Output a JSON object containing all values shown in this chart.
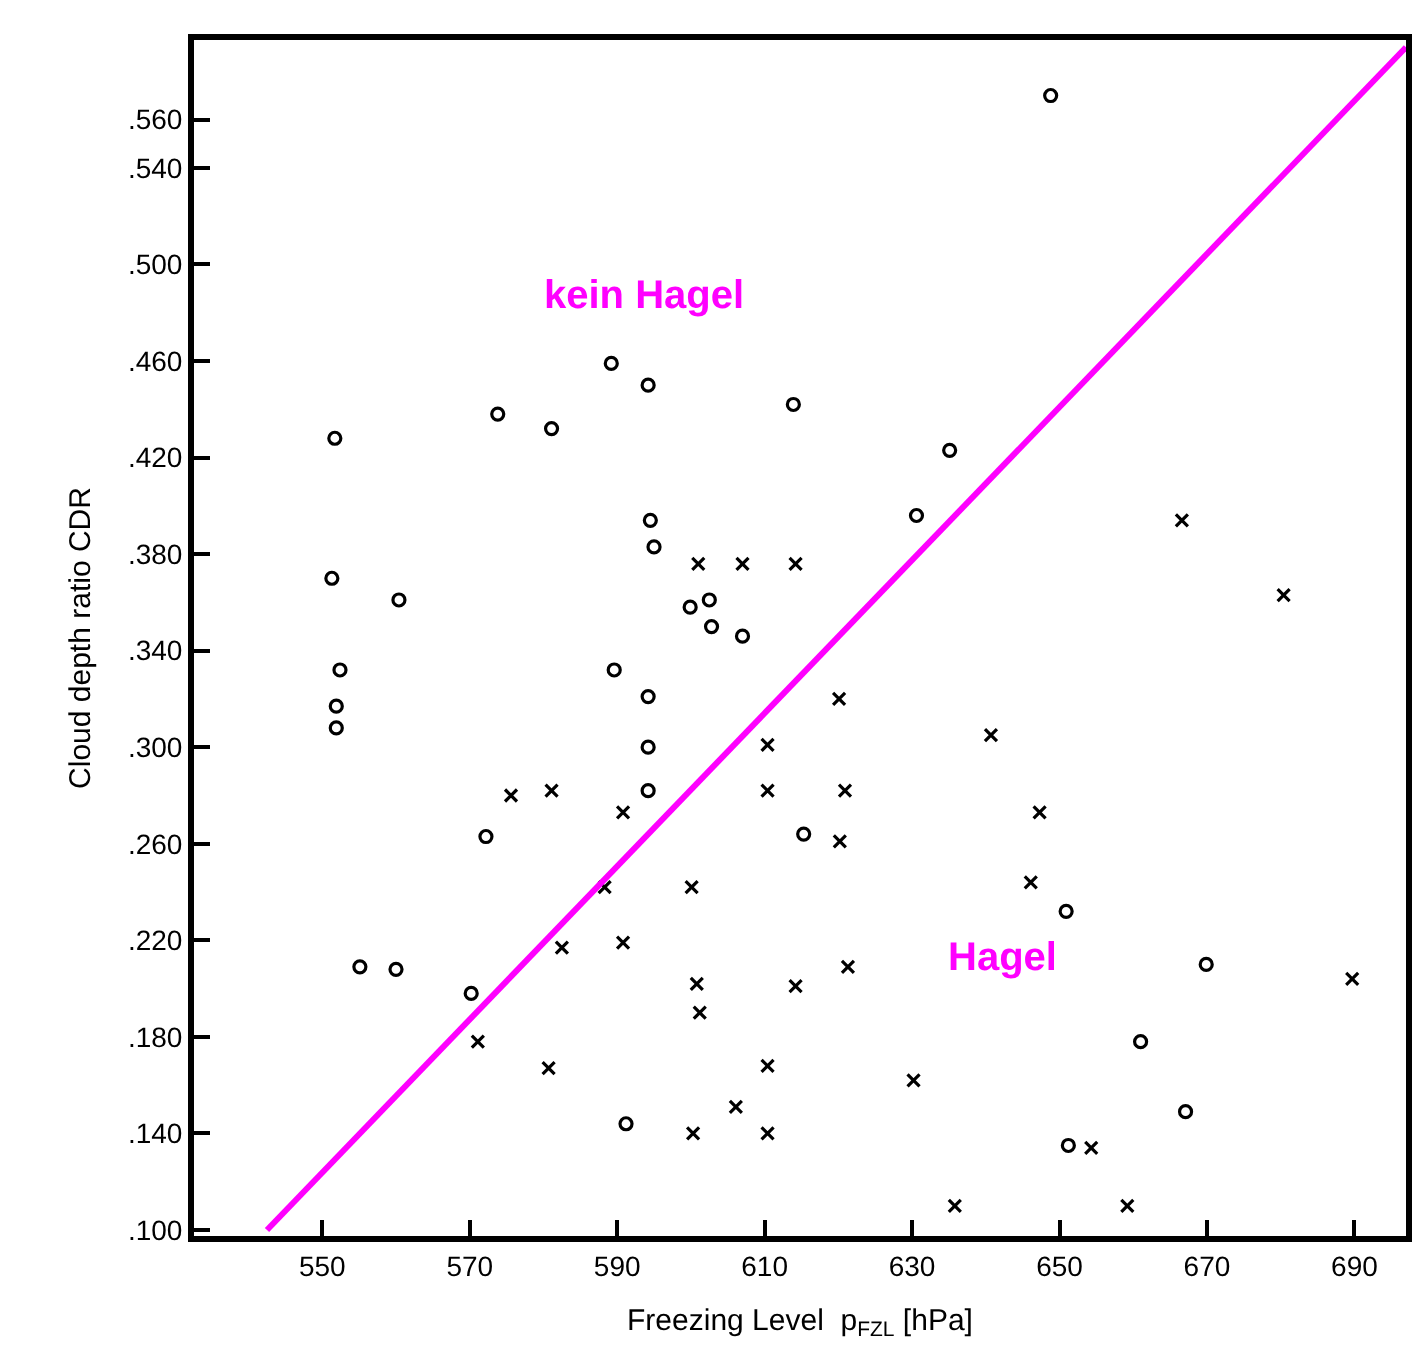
{
  "chart_data": {
    "type": "scatter",
    "xlabel": "Freezing Level  p$_{FZL}$ [hPa]",
    "ylabel": "Cloud depth ratio CDR",
    "annotations": [
      "kein Hagel",
      "Hagel"
    ],
    "xlim": [
      532.6,
      697
    ],
    "xticks": [
      550,
      570,
      590,
      610,
      630,
      650,
      670,
      690
    ],
    "ylim": [
      0.0975,
      0.593
    ],
    "yticks": [
      {
        "value": 0.1,
        "label": ".100"
      },
      {
        "value": 0.14,
        "label": ".140"
      },
      {
        "value": 0.18,
        "label": ".180"
      },
      {
        "value": 0.22,
        "label": ".220"
      },
      {
        "value": 0.26,
        "label": ".260"
      },
      {
        "value": 0.3,
        "label": ".300"
      },
      {
        "value": 0.34,
        "label": ".340"
      },
      {
        "value": 0.38,
        "label": ".380"
      },
      {
        "value": 0.42,
        "label": ".420"
      },
      {
        "value": 0.46,
        "label": ".460"
      },
      {
        "value": 0.5,
        "label": ".500"
      },
      {
        "value": 0.54,
        "label": ".540"
      },
      {
        "value": 0.56,
        "label": ".560"
      }
    ],
    "series": [
      {
        "marker": "circle",
        "color": "#000000",
        "x": [
          589.2,
          594.2,
          551.7,
          573.8,
          581.1,
          613.9,
          594.5,
          595.0,
          551.3,
          560.4,
          599.9,
          602.5,
          602.8,
          607.0,
          552.4,
          551.9,
          551.9,
          589.6,
          594.2,
          594.2,
          594.2,
          572.2,
          555.1,
          560.0,
          570.2,
          591.2,
          615.3,
          650.9,
          669.9,
          661.0,
          667.1,
          651.2,
          648.8,
          635.1,
          630.6
        ],
        "values": [
          0.459,
          0.45,
          0.428,
          0.438,
          0.432,
          0.442,
          0.394,
          0.383,
          0.37,
          0.361,
          0.358,
          0.361,
          0.35,
          0.346,
          0.332,
          0.317,
          0.308,
          0.332,
          0.321,
          0.3,
          0.282,
          0.263,
          0.209,
          0.208,
          0.198,
          0.144,
          0.264,
          0.232,
          0.21,
          0.178,
          0.149,
          0.135,
          0.57,
          0.423,
          0.396
        ]
      },
      {
        "marker": "cross",
        "color": "#000000",
        "x": [
          601.0,
          607.0,
          614.2,
          575.6,
          581.1,
          590.8,
          610.4,
          610.4,
          588.3,
          600.1,
          582.5,
          590.8,
          600.8,
          601.2,
          571.1,
          580.7,
          610.4,
          606.1,
          600.3,
          610.4,
          614.2,
          620.1,
          640.7,
          620.9,
          647.3,
          620.2,
          646.1,
          621.3,
          689.7,
          630.2,
          654.3,
          635.8,
          659.2,
          666.6,
          680.4
        ],
        "values": [
          0.376,
          0.376,
          0.376,
          0.28,
          0.282,
          0.273,
          0.301,
          0.282,
          0.242,
          0.242,
          0.217,
          0.219,
          0.202,
          0.19,
          0.178,
          0.167,
          0.168,
          0.151,
          0.14,
          0.14,
          0.201,
          0.32,
          0.305,
          0.282,
          0.273,
          0.261,
          0.244,
          0.209,
          0.204,
          0.162,
          0.134,
          0.11,
          0.11,
          0.394,
          0.363
        ]
      },
      {
        "type": "line",
        "marker": "none",
        "line_style": "solid",
        "color": "#ff00ff",
        "x": [
          542.5,
          697
        ],
        "values": [
          0.1,
          0.59
        ]
      }
    ]
  }
}
